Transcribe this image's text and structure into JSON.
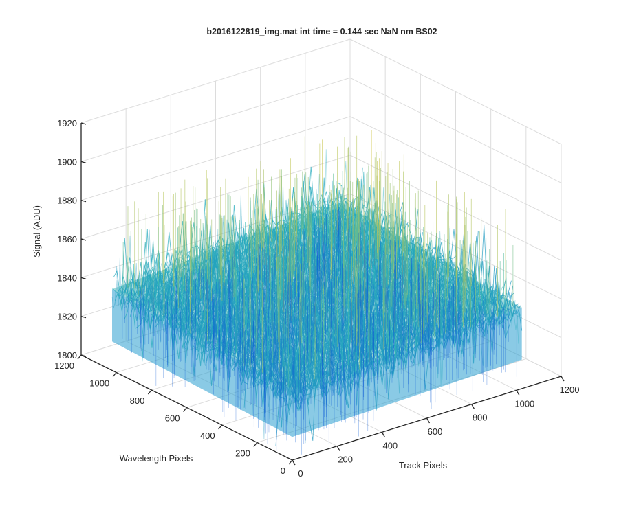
{
  "chart_data": {
    "type": "surface",
    "title": "b2016122819_img.mat int time = 0.144 sec  NaN nm BS02",
    "xlabel": "Track Pixels",
    "ylabel": "Wavelength Pixels",
    "zlabel": "Signal (ADU)",
    "xlim": [
      0,
      1200
    ],
    "ylim": [
      0,
      1200
    ],
    "zlim": [
      1800,
      1920
    ],
    "xticks": [
      "0",
      "200",
      "400",
      "600",
      "800",
      "1000",
      "1200"
    ],
    "yticks": [
      "0",
      "200",
      "400",
      "600",
      "800",
      "1000",
      "1200"
    ],
    "zticks": [
      "1800",
      "1820",
      "1840",
      "1860",
      "1880",
      "1900",
      "1920"
    ],
    "grid": true,
    "colormap": "parula",
    "data_extent": {
      "x": [
        0,
        1024
      ],
      "y": [
        0,
        1024
      ]
    },
    "signal_mean": 1838,
    "signal_noise_range": [
      1800,
      1905
    ],
    "signal_trend": "increases toward high Track Pixels and high Wavelength Pixels"
  },
  "colors": {
    "low": "#0d5bd6",
    "mid": "#2cb8b8",
    "high": "#d9c640",
    "grid": "#dcdcdc",
    "axis": "#262626"
  }
}
